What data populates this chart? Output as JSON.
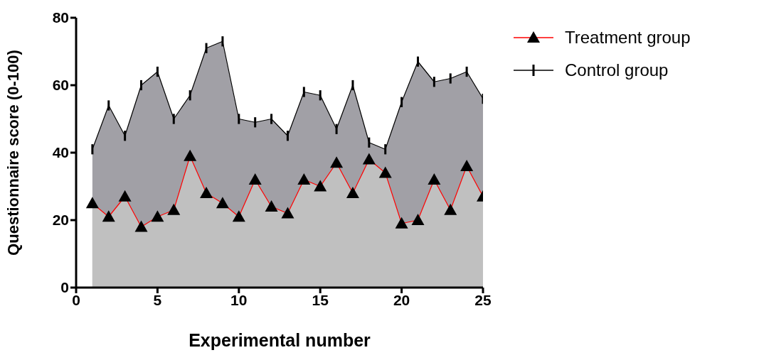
{
  "chart_data": {
    "type": "area",
    "xlabel": "Experimental number",
    "ylabel": "Questionnaire score (0-100)",
    "x": [
      1,
      2,
      3,
      4,
      5,
      6,
      7,
      8,
      9,
      10,
      11,
      12,
      13,
      14,
      15,
      16,
      17,
      18,
      19,
      20,
      21,
      22,
      23,
      24,
      25
    ],
    "xlim": [
      0,
      25
    ],
    "xticks": [
      0,
      5,
      10,
      15,
      20,
      25
    ],
    "ylim": [
      0,
      80
    ],
    "yticks": [
      0,
      20,
      40,
      60,
      80
    ],
    "grid": false,
    "legend": "top right",
    "series": [
      {
        "name": "Control group",
        "color": "#000000",
        "marker": "none",
        "values": [
          41,
          54,
          45,
          60,
          64,
          50,
          57,
          71,
          73,
          50,
          49,
          50,
          45,
          58,
          57,
          47,
          60,
          43,
          41,
          55,
          67,
          61,
          62,
          64,
          56
        ],
        "errors": [
          1.5,
          1.5,
          1.5,
          1.5,
          1.5,
          1.5,
          1.5,
          1.5,
          1.5,
          1.5,
          1.5,
          1.5,
          1.5,
          1.5,
          1.5,
          1.5,
          1.5,
          1.5,
          1.5,
          1.5,
          1.5,
          1.5,
          1.5,
          1.5,
          1.5
        ]
      },
      {
        "name": "Treatment group",
        "color": "#ff0000",
        "marker": "triangle",
        "values": [
          25,
          21,
          27,
          18,
          21,
          23,
          39,
          28,
          25,
          21,
          32,
          24,
          22,
          32,
          30,
          37,
          28,
          38,
          34,
          19,
          20,
          32,
          23,
          36,
          27
        ]
      }
    ]
  }
}
